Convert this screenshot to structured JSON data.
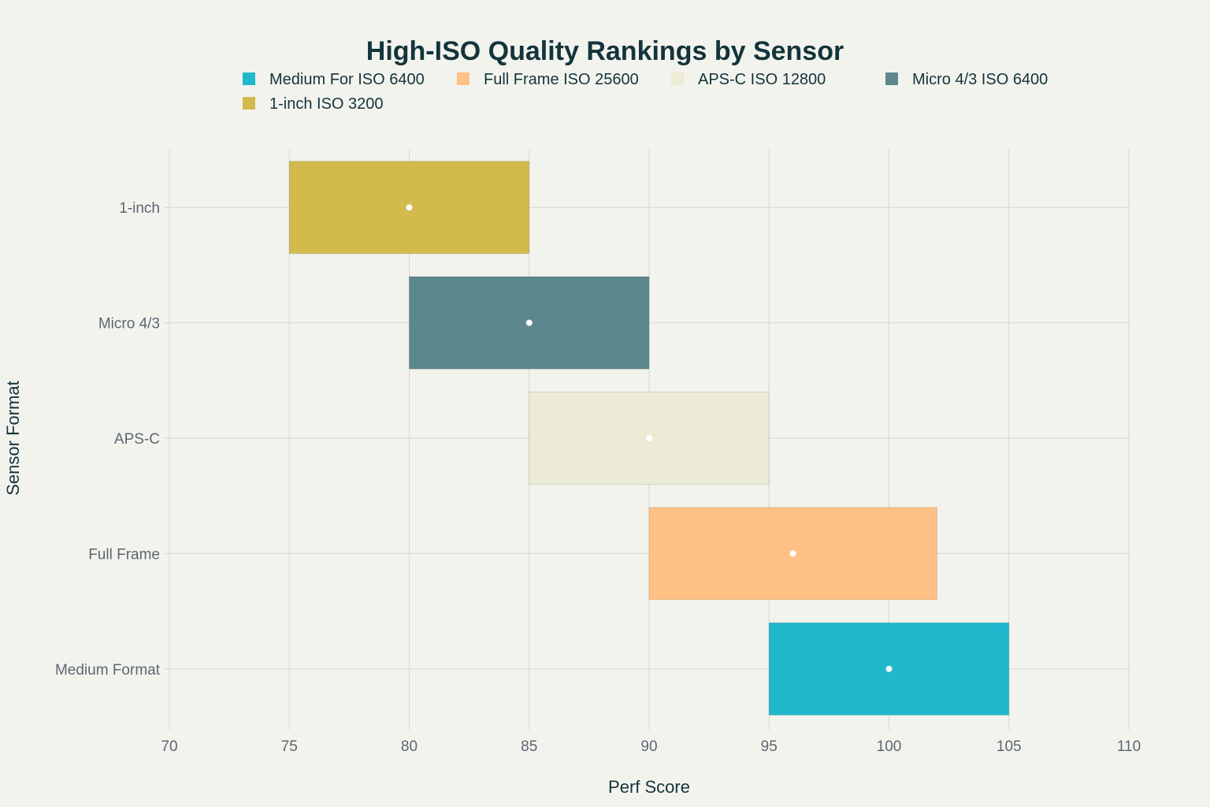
{
  "chart_data": {
    "type": "bar",
    "orientation": "horizontal-floating",
    "title": "High-ISO Quality Rankings by Sensor",
    "xlabel": "Perf Score",
    "ylabel": "Sensor Format",
    "xlim": [
      70,
      110
    ],
    "xticks": [
      70,
      75,
      80,
      85,
      90,
      95,
      100,
      105,
      110
    ],
    "grid": true,
    "legend_position": "top",
    "categories": [
      "1-inch",
      "Micro 4/3",
      "APS-C",
      "Full Frame",
      "Medium Format"
    ],
    "series": [
      {
        "name": "Medium For ISO 6400",
        "category": "Medium Format",
        "low": 95,
        "high": 105,
        "point": 100,
        "color": "#1FB8CD"
      },
      {
        "name": "Full Frame ISO 25600",
        "category": "Full Frame",
        "low": 90,
        "high": 102,
        "point": 96,
        "color": "#FFC185"
      },
      {
        "name": "APS-C ISO 12800",
        "category": "APS-C",
        "low": 85,
        "high": 95,
        "point": 90,
        "color": "#ECEBD5"
      },
      {
        "name": "Micro 4/3 ISO 6400",
        "category": "Micro 4/3",
        "low": 80,
        "high": 90,
        "point": 85,
        "color": "#5D878F"
      },
      {
        "name": "1-inch ISO 3200",
        "category": "1-inch",
        "low": 75,
        "high": 85,
        "point": 80,
        "color": "#D2BA4C"
      }
    ]
  }
}
